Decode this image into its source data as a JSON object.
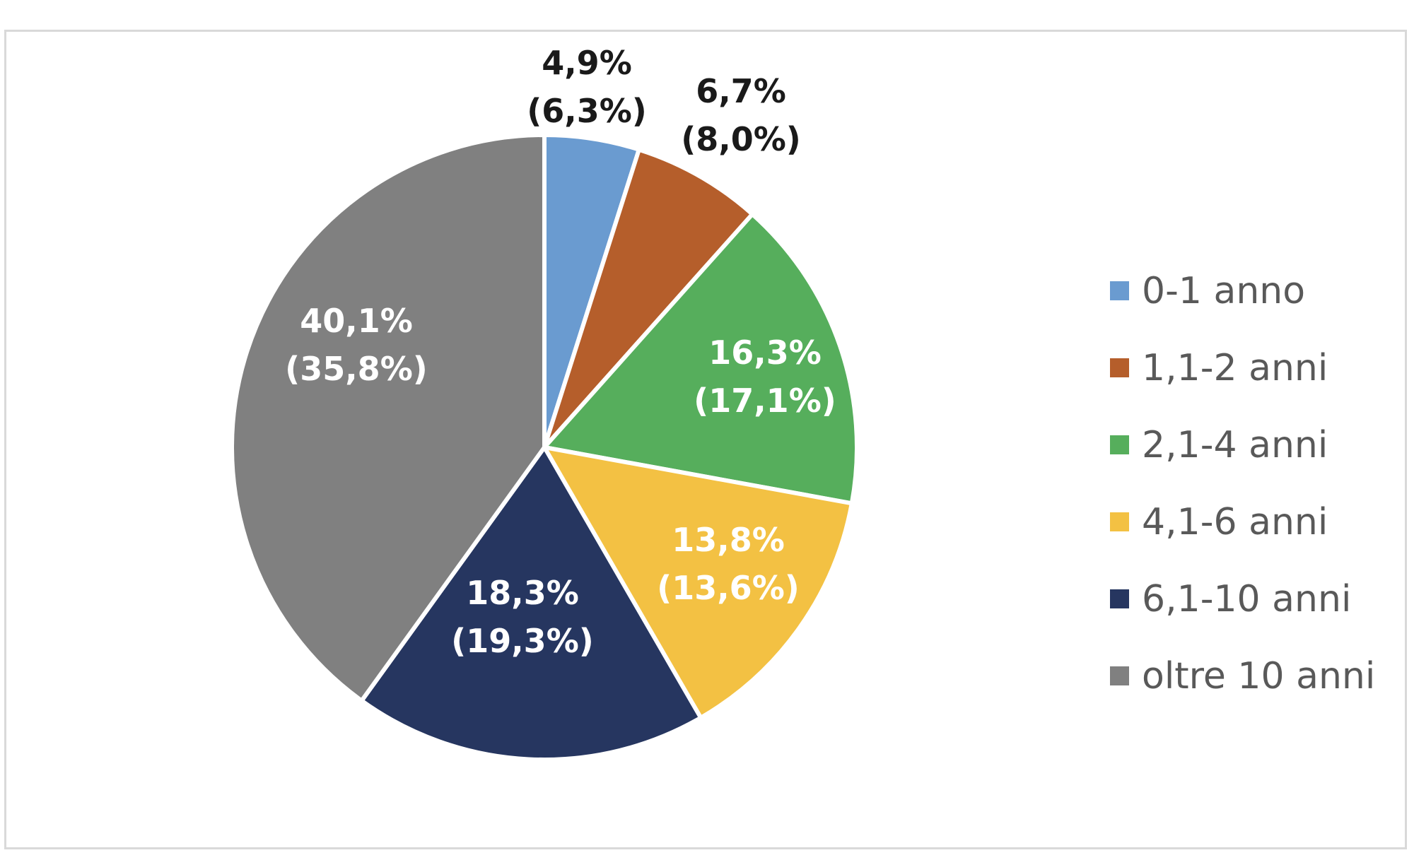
{
  "chart_data": {
    "type": "pie",
    "title": "",
    "start_angle_deg": 0,
    "direction": "clockwise",
    "legend_position": "right",
    "slices": [
      {
        "name": "0-1 anno",
        "value": 4.9,
        "label_main": "4,9%",
        "label_sub": "(6,3%)",
        "color": "#6a9bd0",
        "label_color": "#1a1a1a",
        "label_placement": "outside"
      },
      {
        "name": "1,1-2 anni",
        "value": 6.7,
        "label_main": "6,7%",
        "label_sub": "(8,0%)",
        "color": "#b55e2b",
        "label_color": "#1a1a1a",
        "label_placement": "outside"
      },
      {
        "name": "2,1-4 anni",
        "value": 16.3,
        "label_main": "16,3%",
        "label_sub": "(17,1%)",
        "color": "#56ae5c",
        "label_color": "#ffffff",
        "label_placement": "inside"
      },
      {
        "name": "4,1-6 anni",
        "value": 13.8,
        "label_main": "13,8%",
        "label_sub": "(13,6%)",
        "color": "#f3c143",
        "label_color": "#ffffff",
        "label_placement": "inside"
      },
      {
        "name": "6,1-10 anni",
        "value": 18.3,
        "label_main": "18,3%",
        "label_sub": "(19,3%)",
        "color": "#263660",
        "label_color": "#ffffff",
        "label_placement": "inside"
      },
      {
        "name": "oltre 10 anni",
        "value": 40.1,
        "label_main": "40,1%",
        "label_sub": "(35,8%)",
        "color": "#808080",
        "label_color": "#ffffff",
        "label_placement": "inside"
      }
    ]
  }
}
